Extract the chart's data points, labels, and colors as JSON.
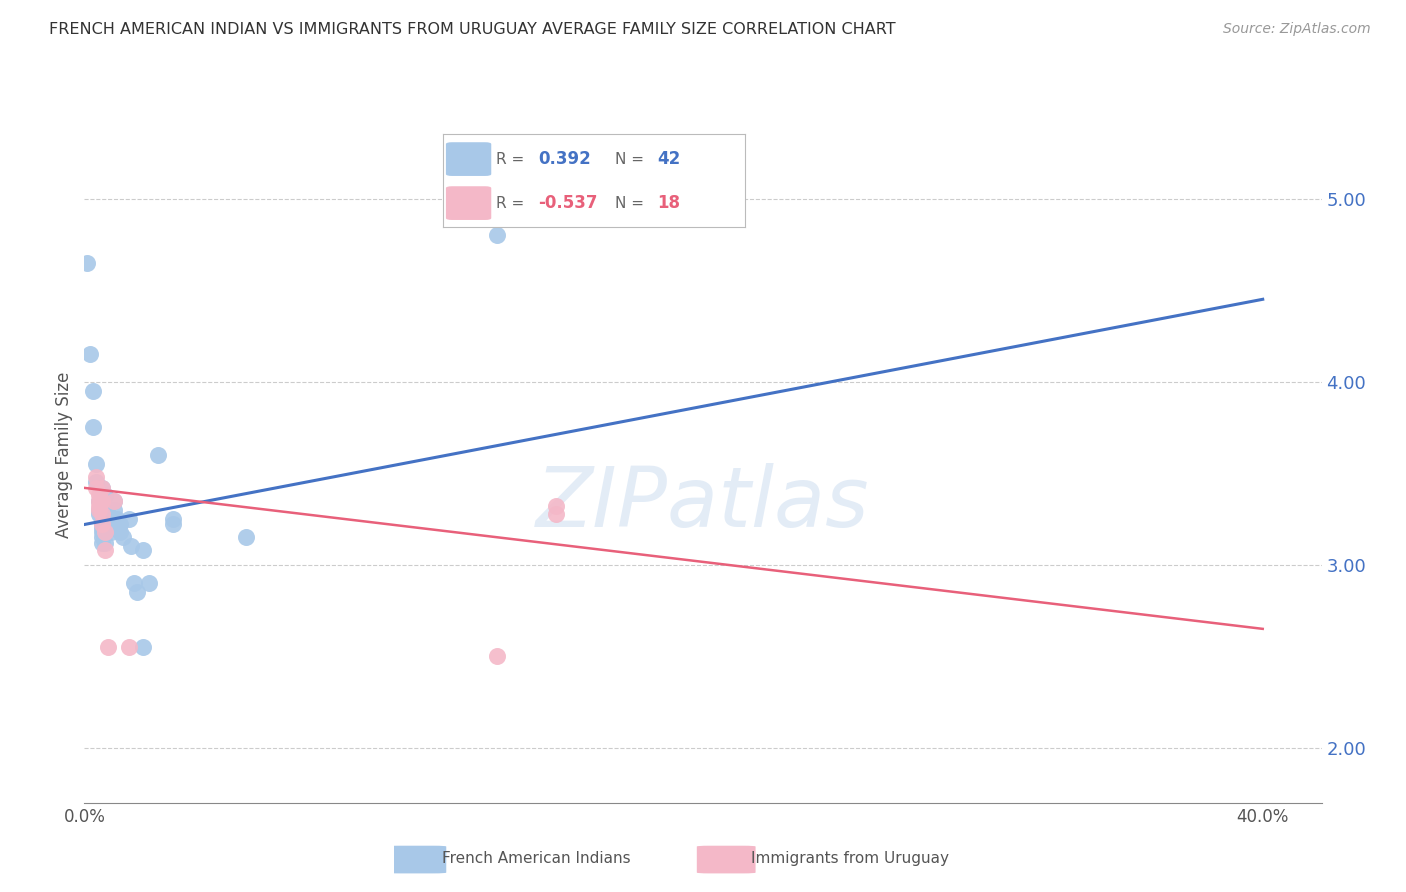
{
  "title": "FRENCH AMERICAN INDIAN VS IMMIGRANTS FROM URUGUAY AVERAGE FAMILY SIZE CORRELATION CHART",
  "source": "Source: ZipAtlas.com",
  "ylabel": "Average Family Size",
  "yticks": [
    2.0,
    3.0,
    4.0,
    5.0
  ],
  "ytick_labels": [
    "2.00",
    "3.00",
    "4.00",
    "5.00"
  ],
  "xticks": [
    0.0,
    0.1,
    0.2,
    0.3,
    0.4
  ],
  "xtick_labels": [
    "0.0%",
    "",
    "",
    "",
    "40.0%"
  ],
  "legend1_label": "French American Indians",
  "legend2_label": "Immigrants from Uruguay",
  "R1": "0.392",
  "N1": "42",
  "R2": "-0.537",
  "N2": "18",
  "blue_color": "#a8c8e8",
  "pink_color": "#f4b8c8",
  "blue_line_color": "#4472c4",
  "pink_line_color": "#e8607a",
  "blue_scatter": [
    [
      0.001,
      4.65
    ],
    [
      0.002,
      4.15
    ],
    [
      0.003,
      3.95
    ],
    [
      0.003,
      3.75
    ],
    [
      0.004,
      3.55
    ],
    [
      0.004,
      3.45
    ],
    [
      0.005,
      3.35
    ],
    [
      0.005,
      3.3
    ],
    [
      0.005,
      3.28
    ],
    [
      0.006,
      3.42
    ],
    [
      0.006,
      3.32
    ],
    [
      0.006,
      3.22
    ],
    [
      0.006,
      3.2
    ],
    [
      0.006,
      3.18
    ],
    [
      0.006,
      3.15
    ],
    [
      0.006,
      3.12
    ],
    [
      0.007,
      3.38
    ],
    [
      0.007,
      3.25
    ],
    [
      0.007,
      3.22
    ],
    [
      0.007,
      3.18
    ],
    [
      0.007,
      3.12
    ],
    [
      0.008,
      3.28
    ],
    [
      0.009,
      3.22
    ],
    [
      0.009,
      3.18
    ],
    [
      0.01,
      3.35
    ],
    [
      0.01,
      3.3
    ],
    [
      0.011,
      3.25
    ],
    [
      0.012,
      3.22
    ],
    [
      0.012,
      3.18
    ],
    [
      0.013,
      3.15
    ],
    [
      0.015,
      3.25
    ],
    [
      0.016,
      3.1
    ],
    [
      0.017,
      2.9
    ],
    [
      0.018,
      2.85
    ],
    [
      0.02,
      3.08
    ],
    [
      0.022,
      2.9
    ],
    [
      0.025,
      3.6
    ],
    [
      0.03,
      3.25
    ],
    [
      0.03,
      3.22
    ],
    [
      0.055,
      3.15
    ],
    [
      0.14,
      4.8
    ],
    [
      0.02,
      2.55
    ]
  ],
  "pink_scatter": [
    [
      0.004,
      3.48
    ],
    [
      0.004,
      3.42
    ],
    [
      0.005,
      3.38
    ],
    [
      0.005,
      3.35
    ],
    [
      0.005,
      3.32
    ],
    [
      0.005,
      3.3
    ],
    [
      0.006,
      3.42
    ],
    [
      0.006,
      3.35
    ],
    [
      0.006,
      3.28
    ],
    [
      0.006,
      3.22
    ],
    [
      0.007,
      3.18
    ],
    [
      0.007,
      3.08
    ],
    [
      0.01,
      3.35
    ],
    [
      0.015,
      2.55
    ],
    [
      0.16,
      3.32
    ],
    [
      0.16,
      3.28
    ],
    [
      0.008,
      2.55
    ],
    [
      0.14,
      2.5
    ]
  ],
  "blue_line_x": [
    0.0,
    0.4
  ],
  "blue_line_y": [
    3.22,
    4.45
  ],
  "pink_line_x": [
    0.0,
    0.4
  ],
  "pink_line_y": [
    3.42,
    2.65
  ],
  "xlim": [
    0.0,
    0.42
  ],
  "ylim": [
    1.7,
    5.5
  ],
  "watermark_text": "ZIPatlas",
  "background_color": "#ffffff",
  "grid_color": "#cccccc"
}
